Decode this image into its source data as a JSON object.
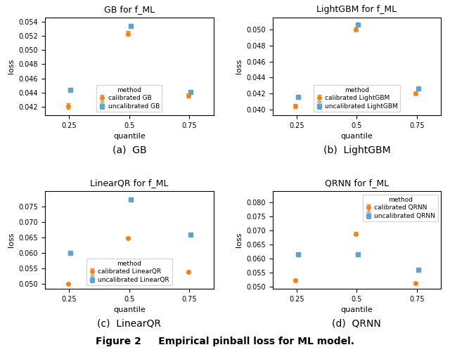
{
  "title": "Figure 2     Empirical pinball loss for ML model.",
  "chart_data": [
    {
      "type": "errorbar",
      "title": "GB for f_ML",
      "subtitle": "(a)  GB",
      "x_label": "quantile",
      "y_label": "loss",
      "x": [
        0.25,
        0.5,
        0.75
      ],
      "xlim": [
        0.15,
        0.85
      ],
      "xticks": [
        0.25,
        0.5,
        0.75
      ],
      "ylim": [
        0.0408,
        0.0546
      ],
      "yticks": [
        0.042,
        0.044,
        0.046,
        0.048,
        {
          "value": 0.05,
          "label": "0.050"
        },
        0.052,
        0.054
      ],
      "legend": "lower center",
      "legend_title": "method",
      "series": [
        {
          "name": "calibrated GB",
          "color": "#FF7F0E",
          "marker": "circle",
          "line_style": "none",
          "values": [
            0.04205,
            0.05235,
            0.04355
          ],
          "errors": [
            0.0004,
            0.00035,
            0.0003
          ]
        },
        {
          "name": "uncalibrated GB",
          "color": "#5BA4CF",
          "marker": "square",
          "line_style": "none",
          "values": [
            0.0444,
            0.0534,
            0.0441
          ],
          "errors": [
            0.00025,
            0.0003,
            0.00025
          ]
        }
      ]
    },
    {
      "type": "errorbar",
      "title": "LightGBM for f_ML",
      "subtitle": "(b)  LightGBM",
      "x_label": "quantile",
      "y_label": "loss",
      "x": [
        0.25,
        0.5,
        0.75
      ],
      "xlim": [
        0.15,
        0.85
      ],
      "xticks": [
        0.25,
        0.5,
        0.75
      ],
      "ylim": [
        0.0393,
        0.0515
      ],
      "yticks": [
        {
          "value": 0.04,
          "label": "0.040"
        },
        0.042,
        0.044,
        0.046,
        0.048,
        {
          "value": 0.05,
          "label": "0.050"
        }
      ],
      "legend": "lower center",
      "legend_title": "method",
      "series": [
        {
          "name": "calibrated LightGBM",
          "color": "#FF7F0E",
          "marker": "circle",
          "line_style": "none",
          "values": [
            0.0404,
            0.05005,
            0.04205
          ],
          "errors": [
            0.00025,
            0.00025,
            0.00025
          ]
        },
        {
          "name": "uncalibrated LightGBM",
          "color": "#5BA4CF",
          "marker": "square",
          "line_style": "none",
          "values": [
            0.04155,
            0.05065,
            0.04265
          ],
          "errors": [
            0.00025,
            0.00025,
            0.00025
          ]
        }
      ]
    },
    {
      "type": "errorbar",
      "title": "LinearQR for f_ML",
      "subtitle": "(c)  LinearQR",
      "x_label": "quantile",
      "y_label": "loss",
      "x": [
        0.25,
        0.5,
        0.75
      ],
      "xlim": [
        0.15,
        0.85
      ],
      "xticks": [
        0.25,
        0.5,
        0.75
      ],
      "ylim": [
        0.0485,
        0.08
      ],
      "yticks": [
        {
          "value": 0.05,
          "label": "0.050"
        },
        0.055,
        {
          "value": 0.06,
          "label": "0.060"
        },
        0.065,
        {
          "value": 0.07,
          "label": "0.070"
        },
        0.075
      ],
      "legend": "lower center",
      "legend_title": "method",
      "series": [
        {
          "name": "calibrated LinearQR",
          "color": "#FF7F0E",
          "marker": "circle",
          "line_style": "none",
          "values": [
            0.05,
            0.0648,
            0.0539
          ],
          "errors": [
            0.0002,
            0.0004,
            0.00035
          ]
        },
        {
          "name": "uncalibrated LinearQR",
          "color": "#5BA4CF",
          "marker": "square",
          "line_style": "none",
          "values": [
            0.05995,
            0.0774,
            0.0659
          ],
          "errors": [
            0.00025,
            0.00025,
            0.00025
          ]
        }
      ]
    },
    {
      "type": "errorbar",
      "title": "QRNN for f_ML",
      "subtitle": "(d)  QRNN",
      "x_label": "quantile",
      "y_label": "loss",
      "x": [
        0.25,
        0.5,
        0.75
      ],
      "xlim": [
        0.15,
        0.85
      ],
      "xticks": [
        0.25,
        0.5,
        0.75
      ],
      "ylim": [
        0.0493,
        0.084
      ],
      "yticks": [
        {
          "value": 0.05,
          "label": "0.050"
        },
        0.055,
        {
          "value": 0.06,
          "label": "0.060"
        },
        0.065,
        {
          "value": 0.07,
          "label": "0.070"
        },
        0.075,
        {
          "value": 0.08,
          "label": "0.080"
        }
      ],
      "legend": "upper right",
      "legend_title": "method",
      "series": [
        {
          "name": "calibrated QRNN",
          "color": "#FF7F0E",
          "marker": "circle",
          "line_style": "none",
          "values": [
            0.05225,
            0.0688,
            0.05125
          ],
          "errors": [
            0.0004,
            0.0006,
            0.00035
          ]
        },
        {
          "name": "uncalibrated QRNN",
          "color": "#5BA4CF",
          "marker": "square",
          "line_style": "none",
          "values": [
            0.0614,
            0.0614,
            0.0559
          ],
          "errors": [
            0.0003,
            0.0003,
            0.0003
          ]
        }
      ]
    }
  ]
}
